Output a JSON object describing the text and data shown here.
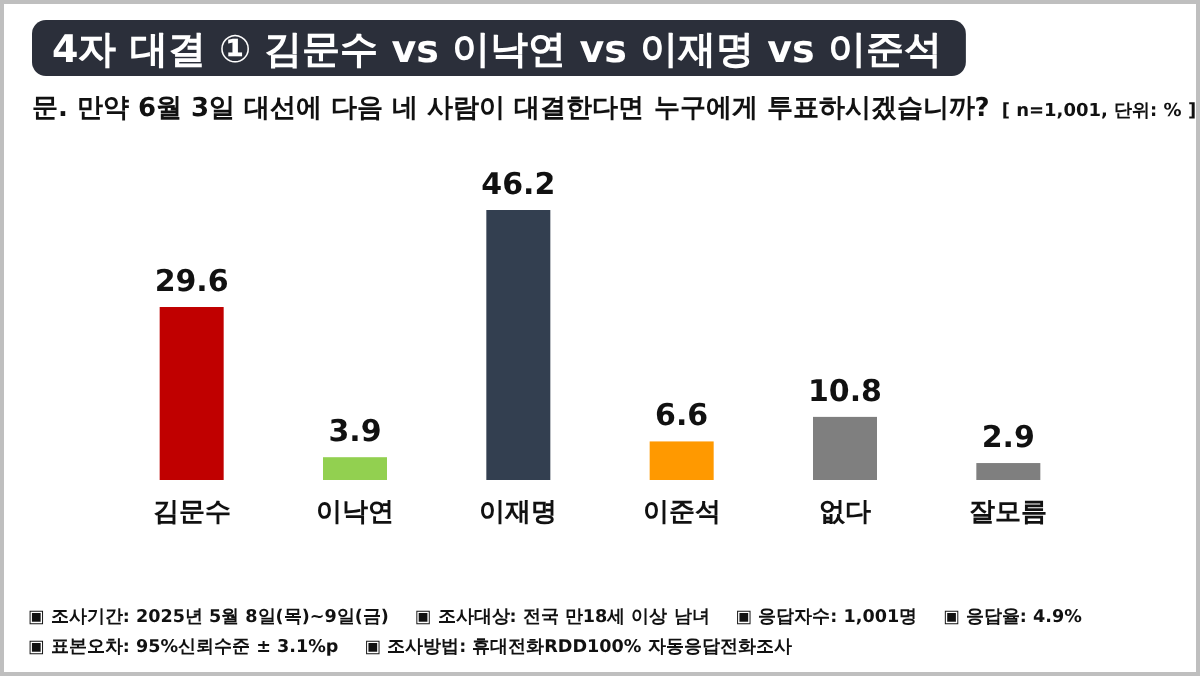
{
  "chart_data": {
    "type": "bar",
    "title": "4자 대결 ① 김문수 vs 이낙연 vs 이재명 vs 이준석",
    "subtitle": "문. 만약 6월 3일 대선에 다음 네 사람이 대결한다면 누구에게 투표하시겠습니까?",
    "categories": [
      "김문수",
      "이낙연",
      "이재명",
      "이준석",
      "없다",
      "잘모름"
    ],
    "values": [
      29.6,
      3.9,
      46.2,
      6.6,
      10.8,
      2.9
    ],
    "colors": [
      "#c00000",
      "#92d050",
      "#333f50",
      "#ff9900",
      "#7f7f7f",
      "#7f7f7f"
    ],
    "data_labels": true,
    "annotations": [
      "[ n=1,001, 단위: % ]",
      "▣ 조사기간: 2025년 5월 8일(목)~9일(금)",
      "▣ 조사대상: 전국 만18세 이상 남녀",
      "▣ 응답자수: 1,001명",
      "▣ 응답율: 4.9%",
      "▣ 표본오차: 95%신뢰수준 ± 3.1%p",
      "▣ 조사방법: 휴대전화RDD100% 자동응답전화조사"
    ]
  }
}
